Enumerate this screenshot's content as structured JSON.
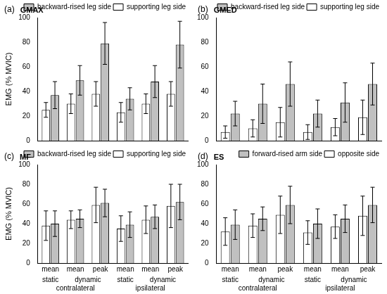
{
  "chart_data": [
    {
      "type": "bar",
      "panel": "(a)",
      "title": "GMAX",
      "categories": [
        null,
        null,
        null,
        null,
        null,
        null
      ],
      "series": [
        {
          "name": "supporting leg side",
          "color": "#ffffff",
          "values": [
            25,
            30,
            38,
            23,
            30,
            38
          ],
          "errors": [
            6,
            8,
            10,
            8,
            8,
            10
          ]
        },
        {
          "name": "backward-rised leg side",
          "color": "#c0c0c0",
          "values": [
            37,
            49,
            79,
            34,
            48,
            78
          ],
          "errors": [
            11,
            12,
            17,
            9,
            13,
            19
          ]
        }
      ],
      "ylim": [
        0,
        100
      ],
      "yticks": [
        0,
        20,
        40,
        60,
        80,
        100
      ],
      "grid": false,
      "legend": "upper right",
      "tick_labels": "y",
      "y_label": "EMG (% MVIC)"
    },
    {
      "type": "bar",
      "panel": "(b)",
      "title": "GMED",
      "categories": [
        null,
        null,
        null,
        null,
        null,
        null
      ],
      "series": [
        {
          "name": "supporting leg side",
          "color": "#ffffff",
          "values": [
            7,
            10,
            15,
            7,
            11,
            19
          ],
          "errors": [
            5,
            7,
            12,
            6,
            7,
            14
          ]
        },
        {
          "name": "backward-rised leg side",
          "color": "#c0c0c0",
          "values": [
            22,
            30,
            46,
            22,
            31,
            46
          ],
          "errors": [
            10,
            16,
            18,
            11,
            16,
            17
          ]
        }
      ],
      "ylim": [
        0,
        100
      ],
      "yticks": [
        0,
        20,
        40,
        60,
        80,
        100
      ],
      "grid": false,
      "legend": "upper right",
      "tick_labels": "y"
    },
    {
      "type": "bar",
      "panel": "(c)",
      "title": "MF",
      "categories": [
        "mean",
        "mean",
        "peak",
        "mean",
        "mean",
        "peak"
      ],
      "subcategories": [
        "static",
        "dynamic",
        "dynamic",
        "static",
        "dynamic",
        "dynamic"
      ],
      "groups": [
        "contralateral",
        "contralateral",
        "contralateral",
        "ipsilateral",
        "ipsilateral",
        "ipsilateral"
      ],
      "series": [
        {
          "name": "supporting leg side",
          "color": "#ffffff",
          "values": [
            38,
            44,
            59,
            35,
            44,
            58
          ],
          "errors": [
            15,
            9,
            18,
            13,
            14,
            22
          ]
        },
        {
          "name": "backward-rised leg side",
          "color": "#c0c0c0",
          "values": [
            40,
            45,
            61,
            39,
            47,
            62
          ],
          "errors": [
            13,
            9,
            14,
            13,
            12,
            18
          ]
        }
      ],
      "ylim": [
        0,
        100
      ],
      "yticks": [
        0,
        20,
        40,
        60,
        80,
        100
      ],
      "grid": false,
      "legend": "upper right",
      "y_label": "EMG (% MVIC)"
    },
    {
      "type": "bar",
      "panel": "(d)",
      "title": "ES",
      "categories": [
        "mean",
        "mean",
        "peak",
        "mean",
        "mean",
        "peak"
      ],
      "subcategories": [
        "static",
        "dynamic",
        "dynamic",
        "static",
        "dynamic",
        "dynamic"
      ],
      "groups": [
        "contralateral",
        "contralateral",
        "contralateral",
        "ipsilateral",
        "ipsilateral",
        "ipsilateral"
      ],
      "series": [
        {
          "name": "opposite side",
          "color": "#ffffff",
          "values": [
            32,
            38,
            49,
            31,
            37,
            48
          ],
          "errors": [
            14,
            12,
            19,
            12,
            12,
            20
          ]
        },
        {
          "name": "forward-rised arm side",
          "color": "#c0c0c0",
          "values": [
            39,
            45,
            59,
            40,
            45,
            59
          ],
          "errors": [
            15,
            12,
            19,
            15,
            14,
            18
          ]
        }
      ],
      "ylim": [
        0,
        100
      ],
      "yticks": [
        0,
        20,
        40,
        60,
        80,
        100
      ],
      "grid": false,
      "legend": "upper right"
    }
  ]
}
